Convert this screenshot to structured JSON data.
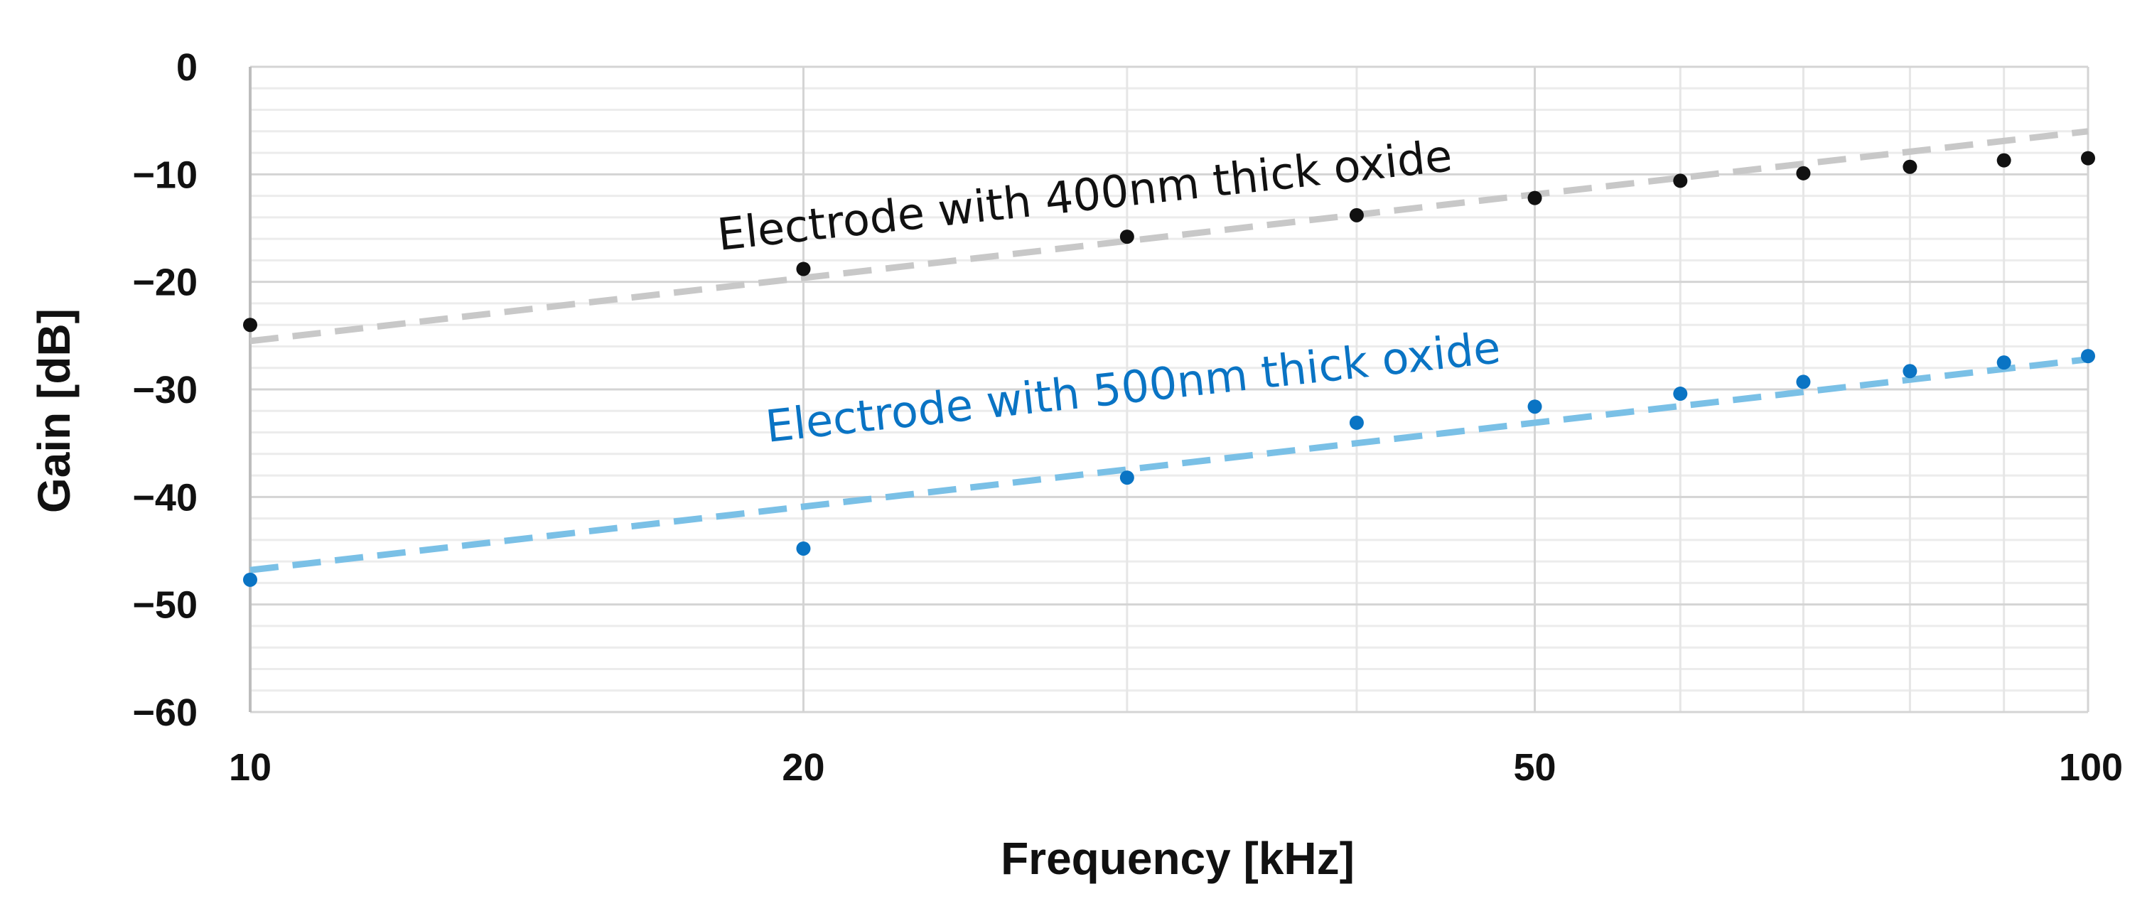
{
  "chart_data": {
    "type": "scatter",
    "xlabel": "Frequency [kHz]",
    "ylabel": "Gain [dB]",
    "x_scale": "log",
    "xlim": [
      10,
      100
    ],
    "ylim": [
      -60,
      0
    ],
    "x_ticks": [
      10,
      20,
      50,
      100
    ],
    "x_tick_labels": [
      "10",
      "20",
      "50",
      "100"
    ],
    "y_ticks": [
      0,
      -10,
      -20,
      -30,
      -40,
      -50,
      -60
    ],
    "y_tick_labels": [
      "0",
      "−10",
      "−20",
      "−30",
      "−40",
      "−50",
      "−60"
    ],
    "x_minor_gridlines": [
      30,
      40,
      60,
      70,
      80,
      90
    ],
    "y_minor_step": 2,
    "grid": true,
    "series": [
      {
        "name": "Electrode with 400nm thick oxide",
        "label_color": "#111111",
        "marker_color": "#111111",
        "trend_color": "#c8c8c8",
        "x": [
          10,
          20,
          30,
          40,
          50,
          60,
          70,
          80,
          90,
          100
        ],
        "y": [
          -24,
          -18.8,
          -15.8,
          -13.8,
          -12.2,
          -10.6,
          -9.9,
          -9.3,
          -8.7,
          -8.5
        ],
        "trendline": {
          "x": [
            10,
            100
          ],
          "y": [
            -25.5,
            -6
          ]
        }
      },
      {
        "name": "Electrode with 500nm thick oxide",
        "label_color": "#0a74c4",
        "marker_color": "#0a74c4",
        "trend_color": "#7ac0e6",
        "x": [
          10,
          20,
          30,
          40,
          50,
          60,
          70,
          80,
          90,
          100
        ],
        "y": [
          -47.7,
          -44.8,
          -38.2,
          -33.1,
          -31.6,
          -30.4,
          -29.3,
          -28.3,
          -27.5,
          -26.9
        ],
        "trendline": {
          "x": [
            10,
            100
          ],
          "y": [
            -46.8,
            -27.2
          ]
        }
      }
    ],
    "annotations": [
      {
        "text": "Electrode with 400nm thick oxide",
        "series": 0
      },
      {
        "text": "Electrode with 500nm thick oxide",
        "series": 1
      }
    ]
  }
}
